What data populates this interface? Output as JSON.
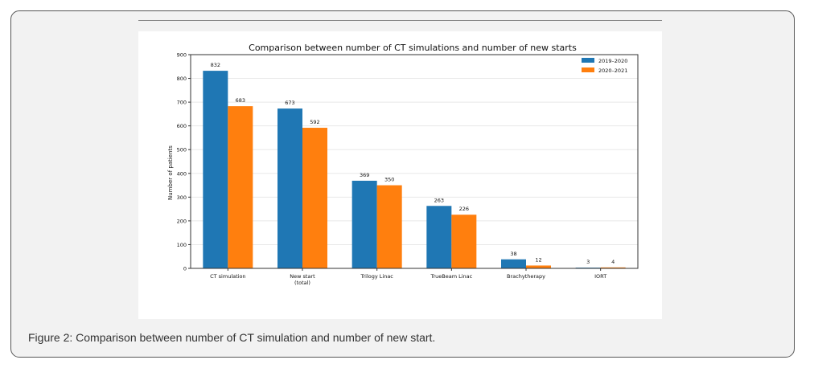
{
  "caption": "Figure 2: Comparison between number of CT simulation and number of new start.",
  "colors": {
    "series1": "#1f77b4",
    "series2": "#ff7f0e",
    "grid": "#e8e8e8",
    "axis": "#333333"
  },
  "chart_data": {
    "type": "bar",
    "title": "Comparison between number of CT simulations and number of new starts",
    "xlabel": "",
    "ylabel": "Number of patients",
    "ylim": [
      0,
      900
    ],
    "yticks": [
      0,
      100,
      200,
      300,
      400,
      500,
      600,
      700,
      800,
      900
    ],
    "grid": true,
    "legend_position": "top-right",
    "categories": [
      "CT simulation",
      "New start\n(total)",
      "Trilogy Linac",
      "TrueBeam Linac",
      "Brachytherapy",
      "IORT"
    ],
    "series": [
      {
        "name": "2019–2020",
        "values": [
          832,
          673,
          369,
          263,
          38,
          3
        ]
      },
      {
        "name": "2020–2021",
        "values": [
          683,
          592,
          350,
          226,
          12,
          4
        ]
      }
    ]
  }
}
